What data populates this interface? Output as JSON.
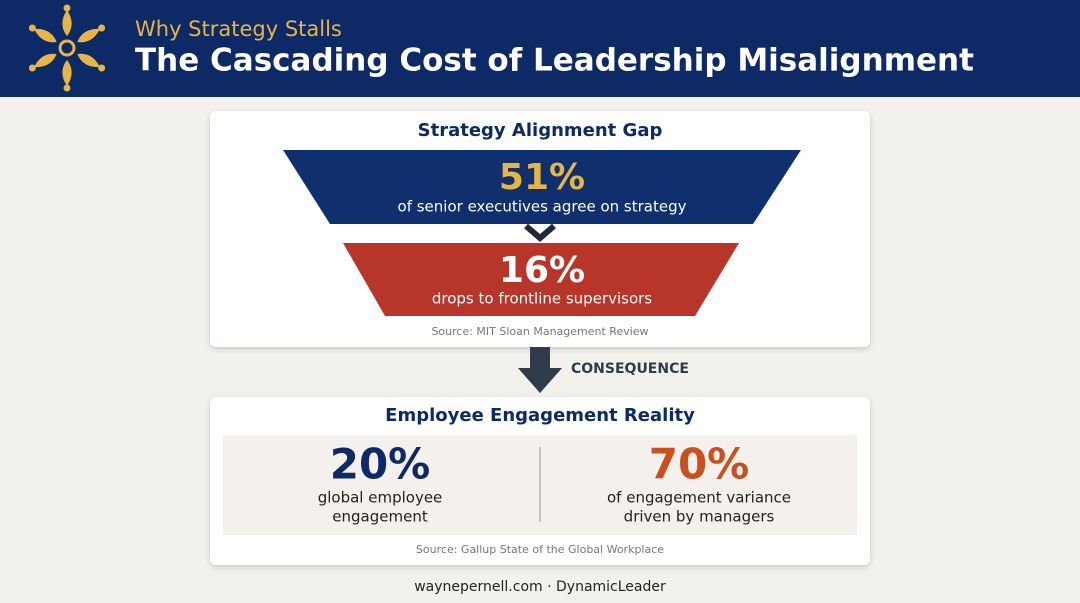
{
  "header": {
    "subtitle": "Why Strategy Stalls",
    "title": "The Cascading Cost of Leadership Misalignment"
  },
  "alignment": {
    "title": "Strategy Alignment Gap",
    "tiers": [
      {
        "value": "51%",
        "label": "of senior executives agree on strategy"
      },
      {
        "value": "16%",
        "label": "drops to frontline supervisors"
      }
    ],
    "source": "Source: MIT Sloan Management Review"
  },
  "consequence": "CONSEQUENCE",
  "engagement": {
    "title": "Employee Engagement Reality",
    "stats": [
      {
        "value": "20%",
        "lines": [
          "global employee",
          "engagement"
        ]
      },
      {
        "value": "70%",
        "lines": [
          "of engagement variance",
          "driven by managers"
        ]
      }
    ],
    "source": "Source: Gallup State of the Global Workplace"
  },
  "footer": "waynepernell.com · DynamicLeader"
}
